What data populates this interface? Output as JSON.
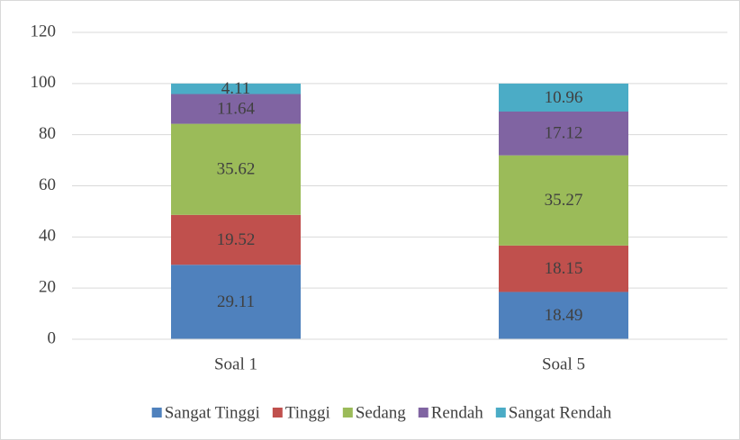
{
  "chart_data": {
    "type": "stacked_bar",
    "categories": [
      "Soal 1",
      "Soal 5"
    ],
    "series": [
      {
        "name": "Sangat Tinggi",
        "color": "#4f81bd",
        "values": [
          29.11,
          18.49
        ]
      },
      {
        "name": "Tinggi",
        "color": "#c0504d",
        "values": [
          19.52,
          18.15
        ]
      },
      {
        "name": "Sedang",
        "color": "#9bbb59",
        "values": [
          35.62,
          35.27
        ]
      },
      {
        "name": "Rendah",
        "color": "#8064a2",
        "values": [
          11.64,
          17.12
        ]
      },
      {
        "name": "Sangat Rendah",
        "color": "#4bacc6",
        "values": [
          4.11,
          10.96
        ]
      }
    ],
    "ylim": [
      0,
      120
    ],
    "yticks": [
      0,
      20,
      40,
      60,
      80,
      100,
      120
    ],
    "grid": true,
    "legend": "bottom"
  }
}
